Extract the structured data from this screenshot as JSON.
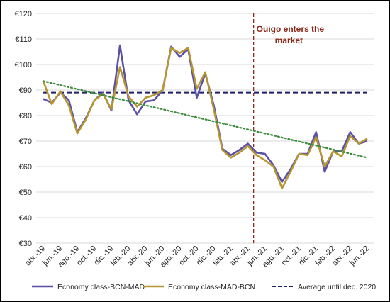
{
  "chart_data": {
    "type": "line",
    "title": "",
    "xlabel": "",
    "ylabel": "",
    "ylim": [
      30,
      120
    ],
    "y_ticks": [
      "€30",
      "€40",
      "€50",
      "€60",
      "€70",
      "€80",
      "€90",
      "€100",
      "€110",
      "€120"
    ],
    "grid": "horizontal",
    "legend_placement": "bottom",
    "categories": [
      "abr.-19",
      "may.-19",
      "jun.-19",
      "jul.-19",
      "ago.-19",
      "sep.-19",
      "oct.-19",
      "nov.-19",
      "dic.-19",
      "ene.-20",
      "feb.-20",
      "mar.-20",
      "abr.-20",
      "may.-20",
      "jun.-20",
      "jul.-20",
      "ago.-20",
      "sep.-20",
      "oct.-20",
      "nov.-20",
      "dic.-20",
      "ene.-21",
      "feb.-21",
      "mar.-21",
      "abr.-21",
      "may.-21",
      "jun.-21",
      "jul.-21",
      "ago.-21",
      "sep.-21",
      "oct.-21",
      "nov.-21",
      "dic.-21",
      "ene.-22",
      "feb.-22",
      "mar.-22",
      "abr.-22",
      "may.-22",
      "jun.-22"
    ],
    "x_tick_labels": [
      "abr.-19",
      "jun.-19",
      "ago.-19",
      "oct.-19",
      "dic.-19",
      "feb.-20",
      "abr.-20",
      "jun.-20",
      "ago.-20",
      "oct.-20",
      "dic.-20",
      "feb.-21",
      "abr.-21",
      "jun.-21",
      "ago.-21",
      "oct.-21",
      "dic.-21",
      "feb.-22",
      "abr.-22",
      "jun.-22"
    ],
    "series": [
      {
        "name": "Economy class-BCN-MAD",
        "color": "#5b4fa8",
        "style": "solid",
        "values": [
          86.5,
          85,
          89,
          86,
          73.5,
          79,
          86,
          89,
          82,
          107.5,
          86,
          80.5,
          85.5,
          86,
          90,
          107,
          103,
          106,
          87,
          96.5,
          84,
          67,
          64.5,
          66.5,
          69,
          65.5,
          65,
          60.5,
          54,
          59,
          65,
          65,
          73.5,
          58,
          66,
          66,
          73.5,
          69,
          70
        ]
      },
      {
        "name": "Economy class-MAD-BCN",
        "color": "#b59631",
        "style": "solid",
        "values": [
          93.5,
          84.5,
          89.5,
          84,
          73,
          78.5,
          86,
          88.5,
          82.5,
          99,
          87.5,
          83.5,
          87,
          88,
          90,
          106.5,
          104.5,
          106.5,
          90.5,
          97,
          82.5,
          66.5,
          63.5,
          65.5,
          68,
          64.5,
          62.5,
          60,
          51.5,
          58,
          65,
          64.5,
          71.5,
          60,
          66,
          64,
          72,
          69,
          71
        ]
      },
      {
        "name": "Average until dec. 2020",
        "color": "#1f1f6b",
        "style": "dashed",
        "values": [
          89,
          89,
          89,
          89,
          89,
          89,
          89,
          89,
          89,
          89,
          89,
          89,
          89,
          89,
          89,
          89,
          89,
          89,
          89,
          89,
          89,
          89,
          89,
          89,
          89,
          89,
          89,
          89,
          89,
          89,
          89,
          89,
          89,
          89,
          89,
          89,
          89,
          89,
          89
        ]
      }
    ],
    "trendline": {
      "type": "linear",
      "color": "#3a8a3a",
      "style": "dotted",
      "start": 93.5,
      "end": 63.5
    },
    "annotations": [
      {
        "text_lines": [
          "Ouigo enters the",
          "market"
        ],
        "x_category": "may.-21",
        "color": "#8b2a1a"
      }
    ]
  }
}
